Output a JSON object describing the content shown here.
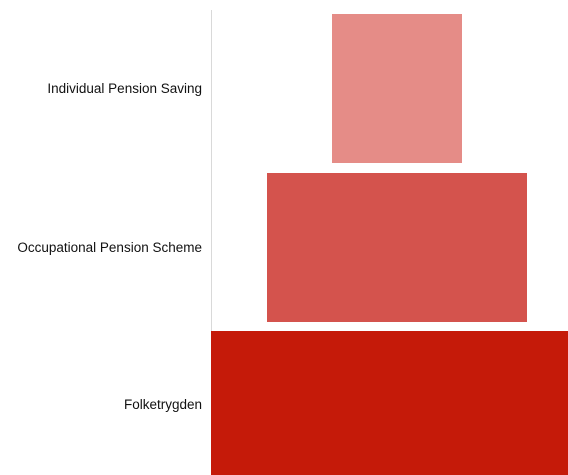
{
  "diagram": {
    "tiers": [
      {
        "label": "Individual Pension Saving",
        "color": "#e58c87"
      },
      {
        "label": "Occupational Pension Scheme",
        "color": "#d4534d"
      },
      {
        "label": "Folketrygden",
        "color": "#c51a09"
      }
    ]
  }
}
